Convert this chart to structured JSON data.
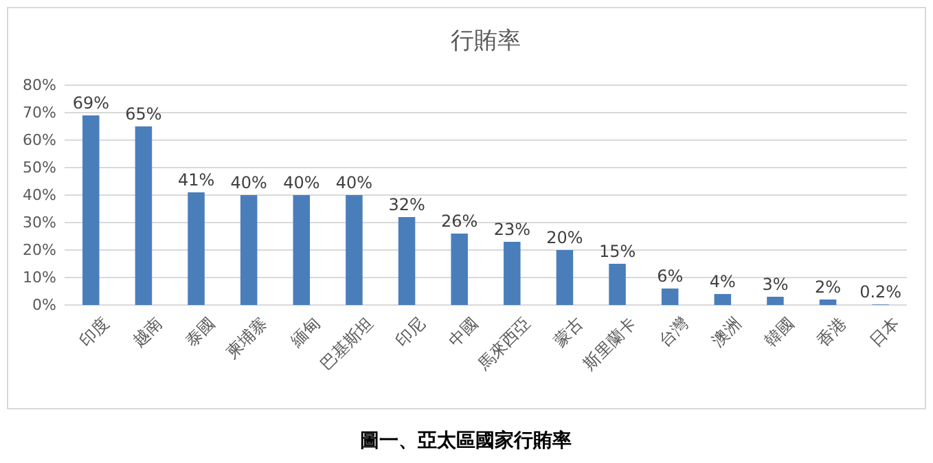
{
  "chart_data": {
    "type": "bar",
    "title": "行賄率",
    "categories": [
      "印度",
      "越南",
      "泰國",
      "柬埔寨",
      "緬甸",
      "巴基斯坦",
      "印尼",
      "中國",
      "馬來西亞",
      "蒙古",
      "斯里蘭卡",
      "台灣",
      "澳洲",
      "韓國",
      "香港",
      "日本"
    ],
    "values": [
      69,
      65,
      41,
      40,
      40,
      40,
      32,
      26,
      23,
      20,
      15,
      6,
      4,
      3,
      2,
      0.2
    ],
    "value_labels": [
      "69%",
      "65%",
      "41%",
      "40%",
      "40%",
      "40%",
      "32%",
      "26%",
      "23%",
      "20%",
      "15%",
      "6%",
      "4%",
      "3%",
      "2%",
      "0.2%"
    ],
    "color": "#4a7ebb",
    "ylim": [
      0,
      80
    ],
    "yticks": [
      {
        "value": 0,
        "label": "0%"
      },
      {
        "value": 10,
        "label": "10%"
      },
      {
        "value": 20,
        "label": "20%"
      },
      {
        "value": 30,
        "label": "30%"
      },
      {
        "value": 40,
        "label": "40%"
      },
      {
        "value": 50,
        "label": "50%"
      },
      {
        "value": 60,
        "label": "60%"
      },
      {
        "value": 70,
        "label": "70%"
      },
      {
        "value": 80,
        "label": "80%"
      }
    ],
    "grid": "y",
    "annotations": [
      "圖一、亞太區國家行賄率"
    ]
  }
}
